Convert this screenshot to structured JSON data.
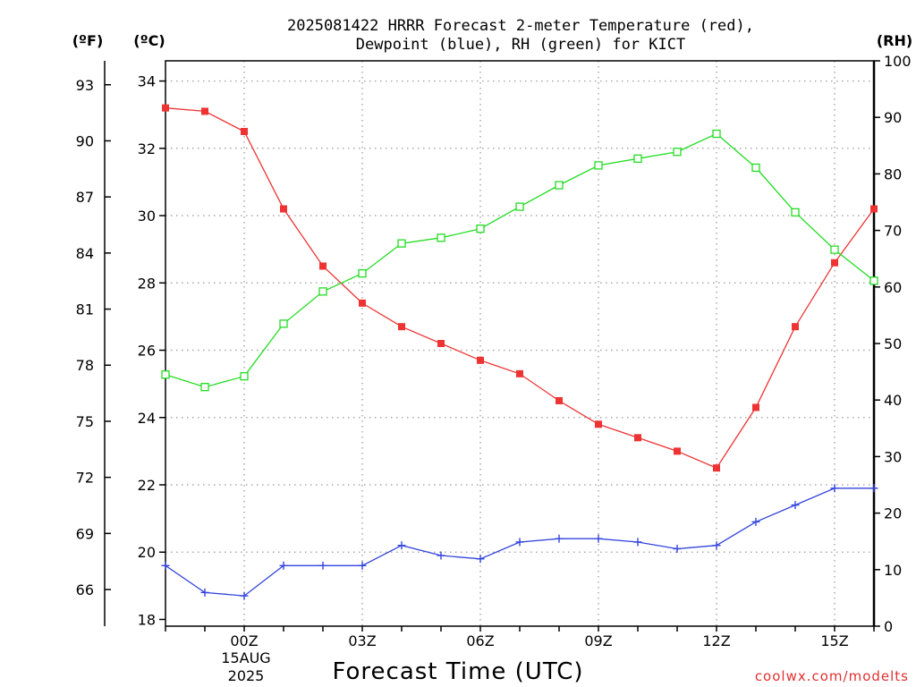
{
  "title_line1": "2025081422 HRRR Forecast 2-meter Temperature (red),",
  "title_line2": "Dewpoint (blue), RH (green) for KICT",
  "unit_f": "(ºF)",
  "unit_c": "(ºC)",
  "unit_rh": "(RH)",
  "xlabel": "Forecast Time (UTC)",
  "date_line1": "15AUG",
  "date_line2": "2025",
  "credit": "coolwx.com/modelts",
  "colors": {
    "temperature": "#ee3333",
    "dewpoint": "#3344dd",
    "rh": "#22dd22",
    "grid": "#aaaaaa"
  },
  "chart_data": {
    "type": "line",
    "title": "2025081422 HRRR Forecast 2-meter Temperature (red), Dewpoint (blue), RH (green) for KICT",
    "xlabel": "Forecast Time (UTC)",
    "x": [
      "22Z",
      "23Z",
      "00Z",
      "01Z",
      "02Z",
      "03Z",
      "04Z",
      "05Z",
      "06Z",
      "07Z",
      "08Z",
      "09Z",
      "10Z",
      "11Z",
      "12Z",
      "13Z",
      "14Z",
      "15Z",
      "16Z"
    ],
    "x_tick_labels": [
      "00Z",
      "03Z",
      "06Z",
      "09Z",
      "12Z",
      "15Z"
    ],
    "ylim_c": [
      17.8,
      34.6
    ],
    "y_ticks_c": [
      18,
      20,
      22,
      24,
      26,
      28,
      30,
      32,
      34
    ],
    "ylim_f": [
      64.04,
      94.28
    ],
    "y_ticks_f": [
      66,
      69,
      72,
      75,
      78,
      81,
      84,
      87,
      90,
      93
    ],
    "ylim_rh": [
      0,
      100
    ],
    "y_ticks_rh": [
      0,
      10,
      20,
      30,
      40,
      50,
      60,
      70,
      80,
      90,
      100
    ],
    "grid": true,
    "series": [
      {
        "name": "Temperature (red)",
        "axis": "C",
        "marker": "filled-square",
        "values": [
          33.2,
          33.1,
          32.5,
          30.2,
          28.5,
          27.4,
          26.7,
          26.2,
          25.7,
          25.3,
          24.5,
          23.8,
          23.4,
          23.0,
          22.5,
          24.3,
          26.7,
          28.6,
          30.2
        ]
      },
      {
        "name": "Dewpoint (blue)",
        "axis": "C",
        "marker": "plus",
        "values": [
          19.6,
          18.8,
          18.7,
          19.6,
          19.6,
          19.6,
          20.2,
          19.9,
          19.8,
          20.3,
          20.4,
          20.4,
          20.3,
          20.1,
          20.2,
          20.9,
          21.4,
          21.9,
          21.9
        ]
      },
      {
        "name": "RH (green)",
        "axis": "RH",
        "marker": "open-square",
        "values": [
          44.5,
          42.3,
          44.2,
          53.5,
          59.2,
          62.4,
          67.7,
          68.7,
          70.3,
          74.2,
          78.0,
          81.5,
          82.7,
          83.9,
          87.1,
          81.1,
          73.2,
          66.6,
          61.1
        ]
      }
    ]
  }
}
